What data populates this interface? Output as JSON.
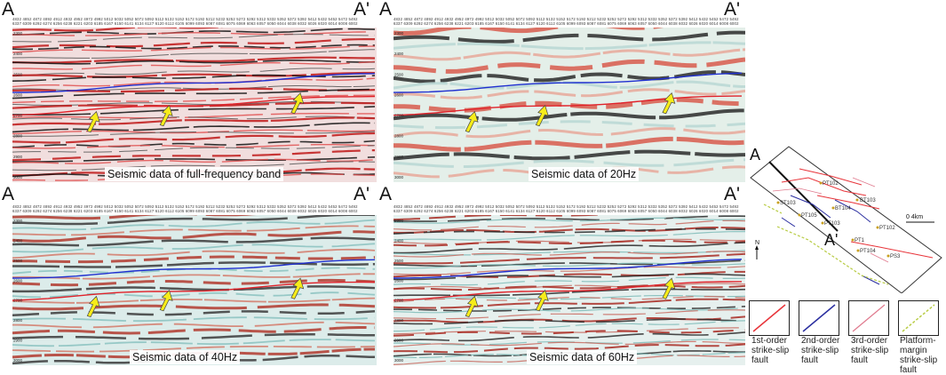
{
  "panels": [
    {
      "id": "full",
      "left_label": "A",
      "right_label": "A'",
      "caption": "Seismic data of full-frequency band"
    },
    {
      "id": "20hz",
      "left_label": "A",
      "right_label": "A'",
      "caption": "Seismic data of 20Hz"
    },
    {
      "id": "40hz",
      "left_label": "A",
      "right_label": "A'",
      "caption": "Seismic data of 40Hz"
    },
    {
      "id": "60hz",
      "left_label": "A",
      "right_label": "A'",
      "caption": "Seismic data of 60Hz"
    }
  ],
  "trace_header": {
    "row1": "4832 4852 4872 4892 4912 4932 4952 4972 4992 5012 5032 5052 5072 5092 5112 5132 5152 5172 5192 5212 5232 5252 5272 5292 5312 5332 5352 5372 5392 5412 5432 5452 5472 5492",
    "row2": "6337 6309 6292 6274 6256 6238 6221 6203 6185 6167 6150 6141 6134 6127 6120 6112 6105 6099 6093 6087 6081 6075 6069 6063 6057 6050 6044 6038 6032 6026 6020 6014 6008 6002"
  },
  "depth_ticks": [
    "2300",
    "2400",
    "2500",
    "2600",
    "2700",
    "2800",
    "2900",
    "3000"
  ],
  "map": {
    "top_label": "A",
    "bottom_label": "A'",
    "north": "N",
    "scale": "0      4km",
    "wells": [
      "PT102",
      "BT103",
      "ST103",
      "PT105",
      "BT104",
      "PT103",
      "PT102",
      "PT1",
      "PT104",
      "PS3"
    ]
  },
  "legend": [
    {
      "label": "1st-order strike-slip fault",
      "line1": "1st-order",
      "line2": "strike-slip",
      "line3": "fault",
      "color": "#e8343a"
    },
    {
      "label": "2nd-order strike-slip fault",
      "line1": "2nd-order",
      "line2": "strike-slip",
      "line3": "fault",
      "color": "#2b2fa0"
    },
    {
      "label": "3rd-order strike-slip fault",
      "line1": "3rd-order",
      "line2": "strike-slip",
      "line3": "fault",
      "color": "#e07a8e"
    },
    {
      "label": "Platform-margin strike-slip fault",
      "line1": "Platform-margin",
      "line2": "strike-slip",
      "line3": "fault",
      "color": "#b8cc44"
    }
  ]
}
